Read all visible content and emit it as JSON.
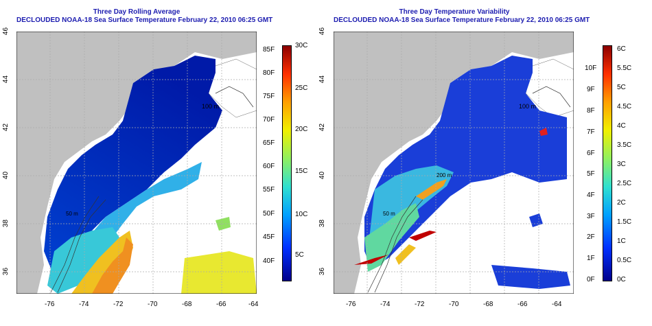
{
  "left_panel": {
    "title_line1": "Three Day Rolling Average",
    "title_line2": "DECLOUDED NOAA-18 Sea Surface Temperature February 22, 2010 06:25 GMT",
    "x_ticks": [
      "-76",
      "-74",
      "-72",
      "-70",
      "-68",
      "-66",
      "-64"
    ],
    "y_ticks": [
      "36",
      "38",
      "40",
      "42",
      "44",
      "46"
    ],
    "contour_labels": [
      "100 m",
      "50 m",
      "200 m"
    ],
    "colorbar_fahrenheit": [
      "40F",
      "45F",
      "50F",
      "55F",
      "60F",
      "65F",
      "70F",
      "75F",
      "80F",
      "85F"
    ],
    "colorbar_celsius": [
      "5C",
      "10C",
      "15C",
      "20C",
      "25C",
      "30C"
    ]
  },
  "right_panel": {
    "title_line1": "Three Day Temperature Variability",
    "title_line2": "DECLOUDED NOAA-18 Sea Surface Temperature February 22, 2010 06:25 GMT",
    "x_ticks": [
      "-76",
      "-74",
      "-72",
      "-70",
      "-68",
      "-66",
      "-64"
    ],
    "y_ticks": [
      "36",
      "38",
      "40",
      "42",
      "44",
      "46"
    ],
    "contour_labels": [
      "100 m",
      "50 m",
      "200 m"
    ],
    "colorbar_fahrenheit": [
      "0F",
      "1F",
      "2F",
      "3F",
      "4F",
      "5F",
      "6F",
      "7F",
      "8F",
      "9F",
      "10F"
    ],
    "colorbar_celsius": [
      "0C",
      "0.5C",
      "1C",
      "1.5C",
      "2C",
      "2.5C",
      "3C",
      "3.5C",
      "4C",
      "4.5C",
      "5C",
      "5.5C",
      "6C"
    ]
  },
  "colors": {
    "land": "#c0c0c0",
    "title": "#1d1db0",
    "cold": "#00008b",
    "hot": "#8b0000"
  }
}
